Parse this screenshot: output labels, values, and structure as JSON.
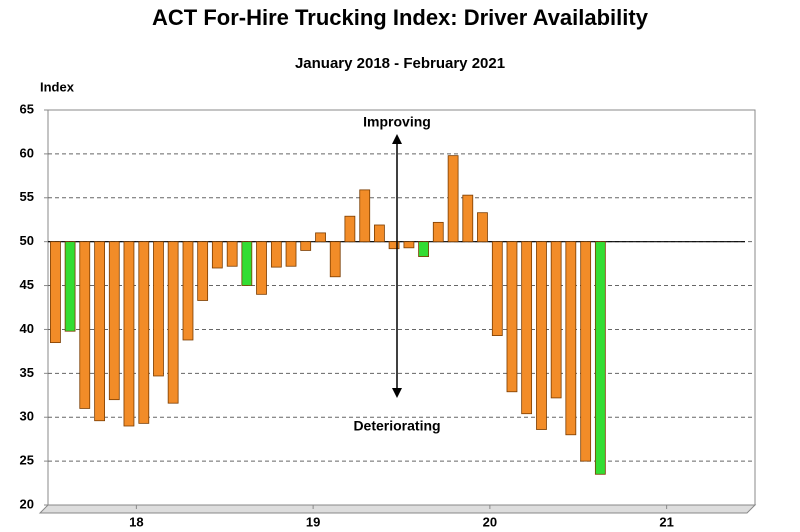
{
  "chart_data": {
    "type": "bar",
    "title": "ACT For-Hire Trucking Index: Driver Availability",
    "subtitle": "January 2018 - February 2021",
    "y_label": "Index",
    "annotations": [
      "Improving",
      "Deteriorating"
    ],
    "x": [
      17.542,
      17.625,
      17.708,
      17.792,
      17.875,
      17.958,
      18.042,
      18.125,
      18.208,
      18.292,
      18.375,
      18.458,
      18.542,
      18.625,
      18.708,
      18.792,
      18.875,
      18.958,
      19.042,
      19.125,
      19.208,
      19.292,
      19.375,
      19.458,
      19.542,
      19.625,
      19.708,
      19.792,
      19.875,
      19.958,
      20.042,
      20.125,
      20.208,
      20.292,
      20.375,
      20.458,
      20.542,
      20.625
    ],
    "values": [
      38.5,
      39.8,
      31,
      29.6,
      32,
      29,
      29.3,
      34.7,
      31.6,
      38.8,
      43.3,
      47,
      47.2,
      45,
      44,
      47.1,
      47.2,
      49,
      51,
      46,
      52.9,
      55.9,
      51.9,
      49.2,
      49.3,
      48.3,
      52.2,
      59.8,
      55.3,
      53.3,
      39.3,
      32.9,
      30.4,
      28.6,
      32.2,
      28,
      25,
      23.5
    ],
    "colors": [
      "#f28c28",
      "#33dd33",
      "#f28c28",
      "#f28c28",
      "#f28c28",
      "#f28c28",
      "#f28c28",
      "#f28c28",
      "#f28c28",
      "#f28c28",
      "#f28c28",
      "#f28c28",
      "#f28c28",
      "#33dd33",
      "#f28c28",
      "#f28c28",
      "#f28c28",
      "#f28c28",
      "#f28c28",
      "#f28c28",
      "#f28c28",
      "#f28c28",
      "#f28c28",
      "#f28c28",
      "#f28c28",
      "#33dd33",
      "#f28c28",
      "#f28c28",
      "#f28c28",
      "#f28c28",
      "#f28c28",
      "#f28c28",
      "#f28c28",
      "#f28c28",
      "#f28c28",
      "#f28c28",
      "#f28c28",
      "#33dd33"
    ],
    "baseline": 50,
    "xlim": [
      17.5,
      21.5
    ],
    "xticks": [
      18,
      19,
      20,
      21
    ],
    "ylim": [
      20,
      65
    ],
    "yticks": [
      20,
      25,
      30,
      35,
      40,
      45,
      50,
      55,
      60,
      65
    ],
    "grid": true
  }
}
